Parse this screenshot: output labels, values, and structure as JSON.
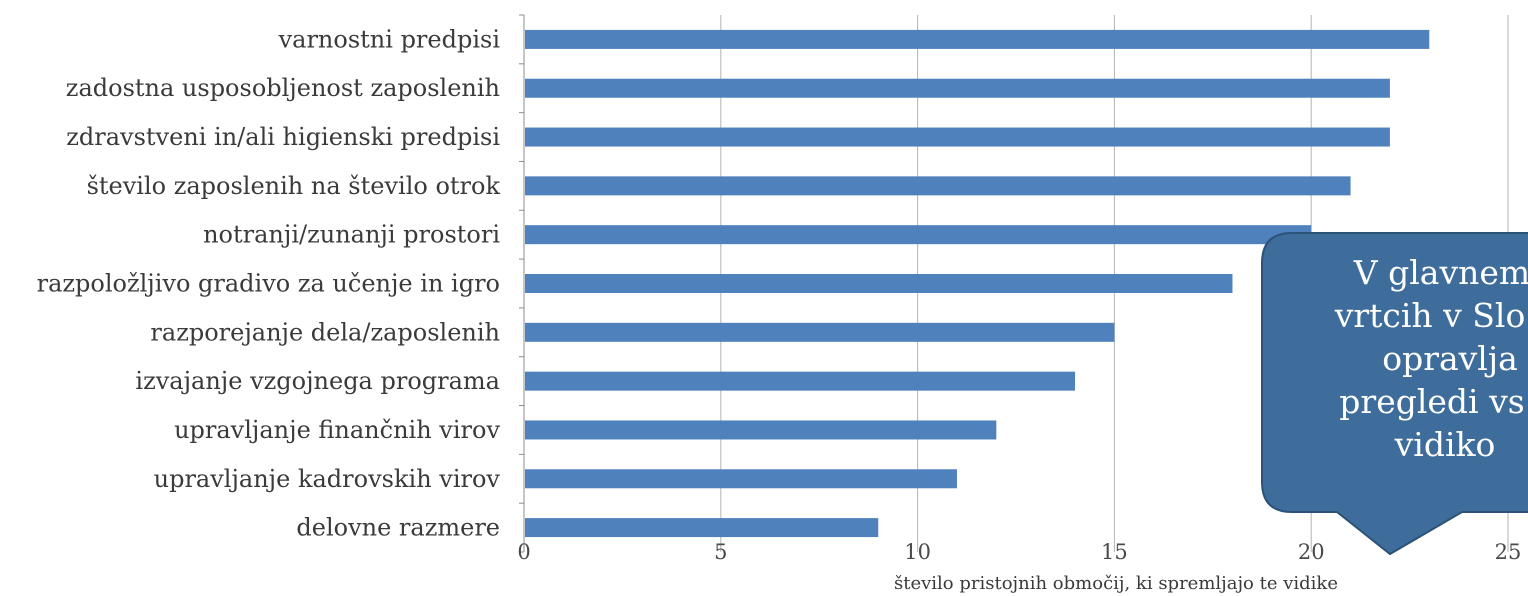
{
  "chart_data": {
    "type": "bar",
    "orientation": "horizontal",
    "categories": [
      "varnostni predpisi",
      "zadostna usposobljenost zaposlenih",
      "zdravstveni in/ali higienski predpisi",
      "število zaposlenih na število otrok",
      "notranji/zunanji prostori",
      "razpoložljivo gradivo za učenje in igro",
      "razporejanje dela/zaposlenih",
      "izvajanje vzgojnega programa",
      "upravljanje finančnih virov",
      "upravljanje kadrovskih virov",
      "delovne razmere"
    ],
    "values": [
      23,
      22,
      22,
      21,
      20,
      18,
      15,
      14,
      12,
      11,
      9
    ],
    "xlabel": "število pristojnih območij, ki spremljajo te vidike",
    "ylabel": "",
    "xlim": [
      0,
      25
    ],
    "xticks": [
      "0",
      "5",
      "10",
      "15",
      "20",
      "25"
    ],
    "grid": "vertical",
    "bar_color": "#4f81bd"
  },
  "callout": {
    "lines": [
      "V glavnem",
      "vrtcih v Slo",
      "opravlja",
      "pregledi vs",
      "vidiko"
    ],
    "fill": "#3e6d9c",
    "stroke": "#2c5277"
  }
}
